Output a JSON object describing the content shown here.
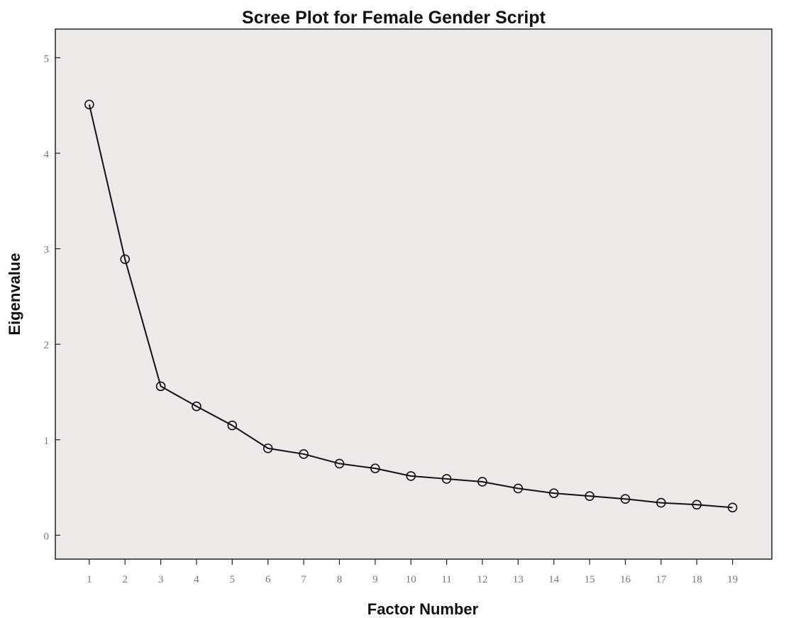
{
  "chart_data": {
    "type": "line",
    "title": "Scree Plot for Female Gender Script",
    "xlabel": "Factor Number",
    "ylabel": "Eigenvalue",
    "x": [
      1,
      2,
      3,
      4,
      5,
      6,
      7,
      8,
      9,
      10,
      11,
      12,
      13,
      14,
      15,
      16,
      17,
      18,
      19
    ],
    "x_tick_labels": [
      "1",
      "2",
      "3",
      "4",
      "5",
      "6",
      "7",
      "8",
      "9",
      "10",
      "11",
      "12",
      "13",
      "14",
      "15",
      "16",
      "17",
      "18",
      "19"
    ],
    "series": [
      {
        "values": [
          4.51,
          2.89,
          1.56,
          1.35,
          1.15,
          0.91,
          0.85,
          0.75,
          0.7,
          0.62,
          0.59,
          0.56,
          0.49,
          0.44,
          0.41,
          0.38,
          0.34,
          0.32,
          0.29
        ],
        "marker": "open-circle",
        "color": "#111111"
      }
    ],
    "y_ticks": [
      0,
      1,
      2,
      3,
      4,
      5
    ],
    "ylim": [
      -0.25,
      5.3
    ],
    "xlim": [
      0.05,
      20.1
    ],
    "grid": false,
    "legend": "none",
    "plot_background": "#ede9e8"
  }
}
